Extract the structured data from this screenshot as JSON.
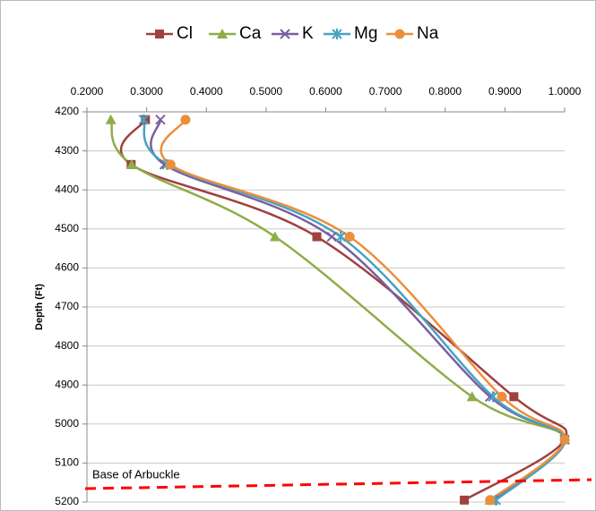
{
  "chart_data": {
    "type": "line",
    "y_label": "Depth (Ft)",
    "y": [
      4220,
      4335,
      4520,
      4930,
      5040,
      5195
    ],
    "series": [
      {
        "name": "Cl",
        "color": "#a0403f",
        "marker": "square",
        "values": [
          0.298,
          0.274,
          0.585,
          0.915,
          1.0,
          0.832
        ]
      },
      {
        "name": "Ca",
        "color": "#8fad47",
        "marker": "triangle",
        "values": [
          0.24,
          0.275,
          0.515,
          0.845,
          1.0,
          0.875
        ]
      },
      {
        "name": "K",
        "color": "#7b5fa0",
        "marker": "x",
        "values": [
          0.323,
          0.33,
          0.61,
          0.875,
          1.0,
          0.88
        ]
      },
      {
        "name": "Mg",
        "color": "#46a3c1",
        "marker": "star",
        "values": [
          0.295,
          0.334,
          0.625,
          0.88,
          1.0,
          0.885
        ]
      },
      {
        "name": "Na",
        "color": "#ec8f3b",
        "marker": "circle",
        "values": [
          0.365,
          0.34,
          0.64,
          0.895,
          1.0,
          0.875
        ]
      }
    ],
    "xlim": [
      0.2,
      1.0
    ],
    "xticks": [
      {
        "value": 0.2,
        "label": "0.2000"
      },
      {
        "value": 0.3,
        "label": "0.3000"
      },
      {
        "value": 0.4,
        "label": "0.4000"
      },
      {
        "value": 0.5,
        "label": "0.5000"
      },
      {
        "value": 0.6,
        "label": "0.6000"
      },
      {
        "value": 0.7,
        "label": "0.7000"
      },
      {
        "value": 0.8,
        "label": "0.8000"
      },
      {
        "value": 0.9,
        "label": "0.9000"
      },
      {
        "value": 1.0,
        "label": "1.0000"
      }
    ],
    "ylim": [
      4200,
      5200
    ],
    "yticks": [
      4200,
      4300,
      4400,
      4500,
      4600,
      4700,
      4800,
      4900,
      5000,
      5100,
      5200
    ],
    "y_inverted": true,
    "grid": true,
    "legend": "top",
    "annotations": [
      {
        "text": "Base of Arbuckle",
        "color": "#ff0000"
      }
    ]
  }
}
